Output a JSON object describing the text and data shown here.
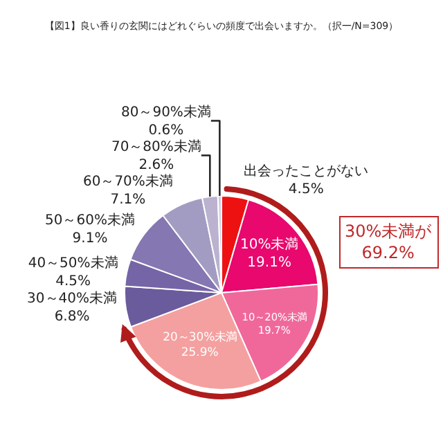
{
  "chart_data": {
    "type": "pie",
    "title": "【図1】良い香りの玄関にはどれぐらいの頻度で出会いますか。（択一/N=309）",
    "categories": [
      "出会ったことがない",
      "10%未満",
      "10～20%未満",
      "20～30%未満",
      "30～40%未満",
      "40～50%未満",
      "50～60%未満",
      "60～70%未満",
      "70～80%未満",
      "80～90%未満"
    ],
    "values": [
      4.5,
      19.1,
      19.7,
      25.9,
      6.8,
      4.5,
      9.1,
      7.1,
      2.6,
      0.6
    ],
    "value_labels": [
      "4.5%",
      "19.1%",
      "19.7%",
      "25.9%",
      "6.8%",
      "4.5%",
      "9.1%",
      "7.1%",
      "2.6%",
      "0.6%"
    ],
    "colors": [
      "#ee1111",
      "#e8086e",
      "#f0689a",
      "#f4a0a0",
      "#6a5b9c",
      "#7565a6",
      "#8577b2",
      "#a39cc2",
      "#bab2cf",
      "#d4cde0"
    ],
    "annotations": [
      "30%未満が\n69.2%"
    ],
    "legend": false
  }
}
